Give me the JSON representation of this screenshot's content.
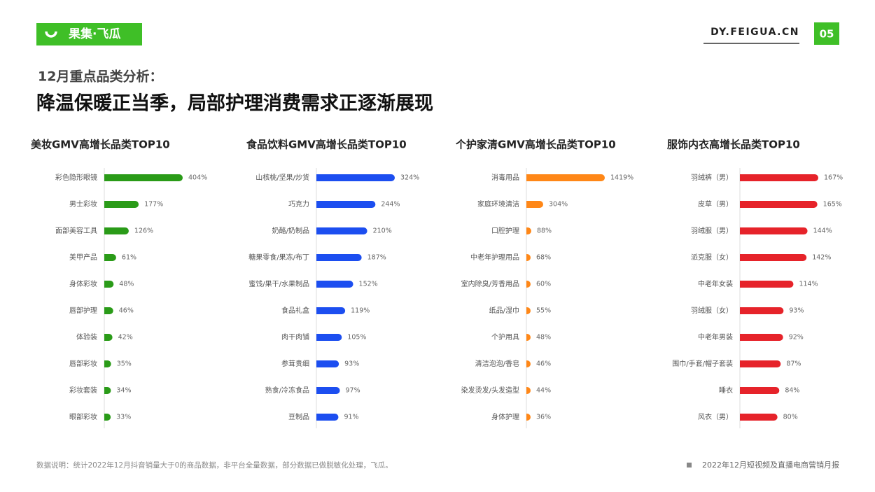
{
  "logo": "果集·飞瓜",
  "site": "DY.FEIGUA.CN",
  "page": "05",
  "heading": {
    "kicker": "12月重点品类分析：",
    "title": "降温保暖正当季，局部护理消费需求正逐渐展现"
  },
  "chart_data": [
    {
      "type": "bar",
      "orientation": "horizontal",
      "title": "美妆GMV高增长品类TOP10",
      "color": "#2a9b18",
      "xlim": [
        0,
        404
      ],
      "categories": [
        "彩色隐形眼镜",
        "男士彩妆",
        "面部美容工具",
        "美甲产品",
        "身体彩妆",
        "唇部护理",
        "体验装",
        "唇部彩妆",
        "彩妆套装",
        "眼部彩妆"
      ],
      "values": [
        404,
        177,
        126,
        61,
        48,
        46,
        42,
        35,
        34,
        33
      ],
      "value_labels": [
        "404%",
        "177%",
        "126%",
        "61%",
        "48%",
        "46%",
        "42%",
        "35%",
        "34%",
        "33%"
      ]
    },
    {
      "type": "bar",
      "orientation": "horizontal",
      "title": "食品饮料GMV高增长品类TOP10",
      "color": "#1c4ef0",
      "xlim": [
        0,
        324
      ],
      "categories": [
        "山核桃/坚果/炒货",
        "巧克力",
        "奶酪/奶制品",
        "糖果零食/果冻/布丁",
        "蜜饯/果干/水果制品",
        "食品礼盒",
        "肉干肉铺",
        "参茸贵细",
        "熟食/冷冻食品",
        "豆制品"
      ],
      "values": [
        324,
        244,
        210,
        187,
        152,
        119,
        105,
        93,
        97,
        91
      ],
      "value_labels": [
        "324%",
        "244%",
        "210%",
        "187%",
        "152%",
        "119%",
        "105%",
        "93%",
        "97%",
        "91%"
      ]
    },
    {
      "type": "bar",
      "orientation": "horizontal",
      "title": "个护家清GMV高增长品类TOP10",
      "color": "#ff8717",
      "xlim": [
        0,
        1419
      ],
      "categories": [
        "消毒用品",
        "家庭环境清洁",
        "口腔护理",
        "中老年护理用品",
        "室内除臭/芳香用品",
        "纸品/湿巾",
        "个护用具",
        "清洁泡泡/香皂",
        "染发烫发/头发造型",
        "身体护理"
      ],
      "values": [
        1419,
        304,
        88,
        68,
        60,
        55,
        48,
        46,
        44,
        36
      ],
      "value_labels": [
        "1419%",
        "304%",
        "88%",
        "68%",
        "60%",
        "55%",
        "48%",
        "46%",
        "44%",
        "36%"
      ]
    },
    {
      "type": "bar",
      "orientation": "horizontal",
      "title": "服饰内衣高增长品类TOP10",
      "color": "#e6232a",
      "xlim": [
        0,
        167
      ],
      "categories": [
        "羽绒裤（男）",
        "皮草（男）",
        "羽绒服（男）",
        "派克服（女）",
        "中老年女装",
        "羽绒服（女）",
        "中老年男装",
        "围巾/手套/帽子套装",
        "睡衣",
        "风衣（男）"
      ],
      "values": [
        167,
        165,
        144,
        142,
        114,
        93,
        92,
        87,
        84,
        80
      ],
      "value_labels": [
        "167%",
        "165%",
        "144%",
        "142%",
        "114%",
        "93%",
        "92%",
        "87%",
        "84%",
        "80%"
      ]
    }
  ],
  "footer": {
    "note": "数据说明：统计2022年12月抖音销量大于0的商品数据，非平台全量数据，部分数据已做脱敏化处理，飞瓜。",
    "report": "2022年12月短视频及直播电商营销月报"
  }
}
